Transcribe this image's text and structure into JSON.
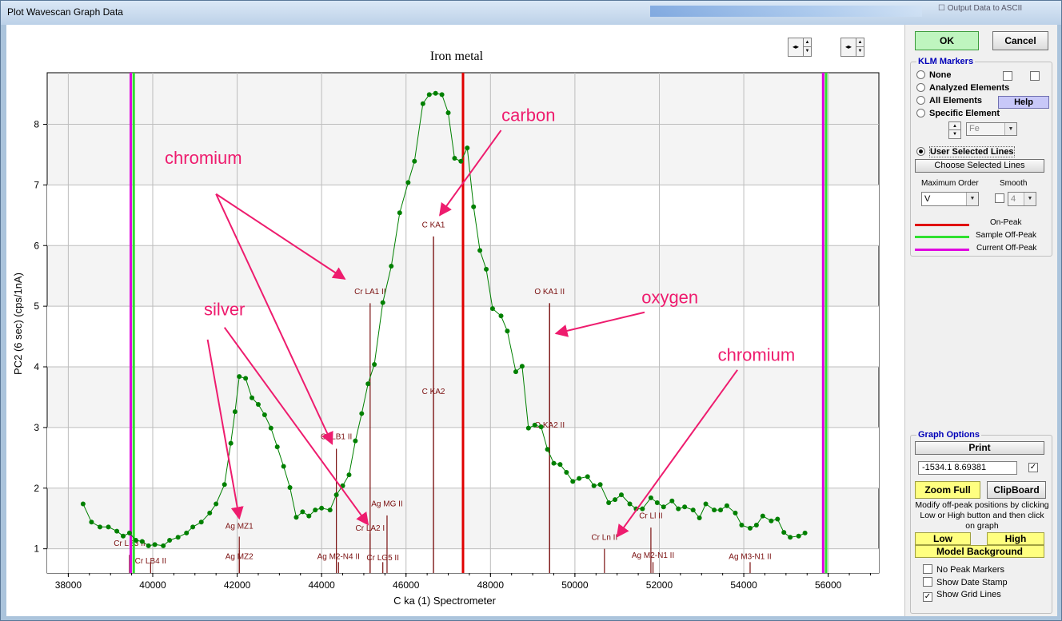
{
  "window": {
    "title": "Plot Wavescan Graph Data",
    "background_hint": "Output Data to ASCII"
  },
  "chart_data": {
    "type": "line",
    "title": "Iron metal",
    "xlabel": "C  ka (1) Spectrometer",
    "ylabel": "PC2 (6 sec) (cps/1nA)",
    "xlim": [
      37500,
      57200
    ],
    "ylim": [
      0.6,
      8.85
    ],
    "x_ticks": [
      38000,
      40000,
      42000,
      44000,
      46000,
      48000,
      50000,
      52000,
      54000,
      56000
    ],
    "y_ticks": [
      1,
      2,
      3,
      4,
      5,
      6,
      7,
      8
    ],
    "grid": true,
    "series": [
      {
        "color": "#008000",
        "points": [
          [
            38350,
            1.74
          ],
          [
            38550,
            1.44
          ],
          [
            38750,
            1.36
          ],
          [
            38950,
            1.36
          ],
          [
            39150,
            1.29
          ],
          [
            39300,
            1.21
          ],
          [
            39450,
            1.26
          ],
          [
            39600,
            1.14
          ],
          [
            39750,
            1.12
          ],
          [
            39900,
            1.05
          ],
          [
            40050,
            1.07
          ],
          [
            40250,
            1.05
          ],
          [
            40400,
            1.14
          ],
          [
            40600,
            1.19
          ],
          [
            40800,
            1.26
          ],
          [
            40950,
            1.36
          ],
          [
            41150,
            1.44
          ],
          [
            41350,
            1.59
          ],
          [
            41500,
            1.74
          ],
          [
            41700,
            2.06
          ],
          [
            41850,
            2.74
          ],
          [
            41950,
            3.26
          ],
          [
            42050,
            3.84
          ],
          [
            42200,
            3.81
          ],
          [
            42350,
            3.49
          ],
          [
            42500,
            3.38
          ],
          [
            42650,
            3.21
          ],
          [
            42800,
            2.99
          ],
          [
            42950,
            2.68
          ],
          [
            43100,
            2.36
          ],
          [
            43250,
            2.01
          ],
          [
            43400,
            1.52
          ],
          [
            43550,
            1.61
          ],
          [
            43700,
            1.54
          ],
          [
            43850,
            1.64
          ],
          [
            44000,
            1.67
          ],
          [
            44200,
            1.64
          ],
          [
            44350,
            1.89
          ],
          [
            44500,
            2.04
          ],
          [
            44650,
            2.22
          ],
          [
            44800,
            2.78
          ],
          [
            44950,
            3.23
          ],
          [
            45100,
            3.72
          ],
          [
            45250,
            4.04
          ],
          [
            45450,
            5.06
          ],
          [
            45650,
            5.66
          ],
          [
            45850,
            6.54
          ],
          [
            46050,
            7.04
          ],
          [
            46200,
            7.39
          ],
          [
            46400,
            8.34
          ],
          [
            46550,
            8.49
          ],
          [
            46700,
            8.51
          ],
          [
            46850,
            8.49
          ],
          [
            47000,
            8.19
          ],
          [
            47150,
            7.44
          ],
          [
            47300,
            7.39
          ],
          [
            47450,
            7.61
          ],
          [
            47600,
            6.64
          ],
          [
            47750,
            5.92
          ],
          [
            47900,
            5.61
          ],
          [
            48050,
            4.96
          ],
          [
            48250,
            4.84
          ],
          [
            48400,
            4.59
          ],
          [
            48600,
            3.92
          ],
          [
            48750,
            4.01
          ],
          [
            48900,
            2.99
          ],
          [
            49050,
            3.04
          ],
          [
            49200,
            3.01
          ],
          [
            49350,
            2.64
          ],
          [
            49500,
            2.41
          ],
          [
            49650,
            2.39
          ],
          [
            49800,
            2.26
          ],
          [
            49950,
            2.11
          ],
          [
            50100,
            2.16
          ],
          [
            50300,
            2.19
          ],
          [
            50450,
            2.04
          ],
          [
            50600,
            2.06
          ],
          [
            50800,
            1.76
          ],
          [
            50950,
            1.81
          ],
          [
            51100,
            1.89
          ],
          [
            51300,
            1.74
          ],
          [
            51450,
            1.66
          ],
          [
            51600,
            1.66
          ],
          [
            51800,
            1.84
          ],
          [
            51950,
            1.76
          ],
          [
            52100,
            1.69
          ],
          [
            52300,
            1.79
          ],
          [
            52450,
            1.66
          ],
          [
            52600,
            1.69
          ],
          [
            52800,
            1.64
          ],
          [
            52950,
            1.51
          ],
          [
            53100,
            1.74
          ],
          [
            53300,
            1.64
          ],
          [
            53450,
            1.64
          ],
          [
            53600,
            1.71
          ],
          [
            53800,
            1.59
          ],
          [
            53950,
            1.39
          ],
          [
            54150,
            1.34
          ],
          [
            54300,
            1.39
          ],
          [
            54450,
            1.54
          ],
          [
            54650,
            1.46
          ],
          [
            54800,
            1.49
          ],
          [
            54950,
            1.27
          ],
          [
            55100,
            1.19
          ],
          [
            55300,
            1.21
          ],
          [
            55450,
            1.26
          ]
        ]
      }
    ],
    "position_lines": [
      {
        "name": "On-Peak",
        "x": 47350,
        "color": "#e00000"
      },
      {
        "name": "Sample Off-Peak",
        "x": 39550,
        "color": "#30e030"
      },
      {
        "name": "Current Off-Peak",
        "x": 39480,
        "color": "#e000e0"
      },
      {
        "name": "Sample Off-Peak",
        "x": 55950,
        "color": "#30e030"
      },
      {
        "name": "Current Off-Peak",
        "x": 55880,
        "color": "#e000e0"
      }
    ],
    "klm_markers": [
      {
        "label": "C KA1",
        "x": 46650,
        "y_top": 6.15,
        "label_y": 6.3
      },
      {
        "label": "C KA2",
        "x": 46650,
        "y_top": 6.15,
        "label_y": 3.55
      },
      {
        "label": "Cr LA1 II",
        "x": 45150,
        "y_top": 5.05,
        "label_y": 5.2
      },
      {
        "label": "O KA1 II",
        "x": 49400,
        "y_top": 5.05,
        "label_y": 5.2
      },
      {
        "label": "O KA2 II",
        "x": 49400,
        "y_top": 5.05,
        "label_y": 3.0
      },
      {
        "label": "Cr LB1 II",
        "x": 44350,
        "y_top": 2.65,
        "label_y": 2.81
      },
      {
        "label": "Ag MG II",
        "x": 45550,
        "y_top": 1.55,
        "label_y": 1.7
      },
      {
        "label": "Cr LA2 I",
        "x": 45150,
        "y_top": 1.25,
        "label_y": 1.3
      },
      {
        "label": "Ag MZ1",
        "x": 42050,
        "y_top": 1.2,
        "label_y": 1.33
      },
      {
        "label": "Ag MZ2",
        "x": 42050,
        "y_top": 0.98,
        "label_y": 0.83
      },
      {
        "label": "Ag M2-N4 II",
        "x": 44400,
        "y_top": 0.78,
        "label_y": 0.83
      },
      {
        "label": "Cr LG5 II",
        "x": 45450,
        "y_top": 0.78,
        "label_y": 0.81
      },
      {
        "label": "Cr LB3 II",
        "x": 39450,
        "y_top": 0.9,
        "label_y": 1.05
      },
      {
        "label": "Cr LB4 II",
        "x": 39950,
        "y_top": 0.78,
        "label_y": 0.76
      },
      {
        "label": "Cr Ln II",
        "x": 50700,
        "y_top": 1.0,
        "label_y": 1.15
      },
      {
        "label": "Cr Ll II",
        "x": 51800,
        "y_top": 1.35,
        "label_y": 1.5
      },
      {
        "label": "Ag M2-N1 II",
        "x": 51850,
        "y_top": 0.78,
        "label_y": 0.85
      },
      {
        "label": "Ag M3-N1 II",
        "x": 54150,
        "y_top": 0.78,
        "label_y": 0.83
      }
    ],
    "annotations": [
      {
        "text": "carbon",
        "x": 48900,
        "y": 8.05,
        "arrow_to": [
          46800,
          6.5
        ]
      },
      {
        "text": "chromium",
        "x": 41200,
        "y": 7.35,
        "arrow_to": [
          44550,
          5.45
        ]
      },
      {
        "text": "oxygen",
        "x": 52250,
        "y": 5.05,
        "arrow_to": [
          49550,
          4.55
        ]
      },
      {
        "text": "silver",
        "x": 41700,
        "y": 4.85,
        "arrow_to": [
          45100,
          1.4
        ]
      },
      {
        "text": "chromium",
        "x": 54300,
        "y": 4.1,
        "arrow_to": [
          51000,
          1.2
        ]
      }
    ],
    "annotation_links": [
      {
        "from": [
          41500,
          6.85
        ],
        "to": [
          44250,
          2.73
        ]
      },
      {
        "from": [
          41300,
          4.45
        ],
        "to": [
          42050,
          1.5
        ]
      }
    ]
  },
  "side": {
    "ok": "OK",
    "cancel": "Cancel",
    "klm": {
      "title": "KLM Markers",
      "options": [
        "None",
        "Analyzed Elements",
        "All Elements",
        "Specific Element",
        "User Selected Lines"
      ],
      "selected": "User Selected Lines",
      "help": "Help",
      "element": "Fe",
      "choose_lines": "Choose Selected Lines",
      "max_order_label": "Maximum Order",
      "max_order": "V",
      "smooth_label": "Smooth",
      "smooth": "4"
    },
    "legend": [
      {
        "label": "On-Peak",
        "color": "#e00000"
      },
      {
        "label": "Sample Off-Peak",
        "color": "#30e030"
      },
      {
        "label": "Current Off-Peak",
        "color": "#e000e0"
      }
    ],
    "graph_options": {
      "title": "Graph Options",
      "print": "Print",
      "cursor_readout": "-1534.1  8.69381",
      "zoom_full": "Zoom Full",
      "clipboard": "ClipBoard",
      "instructions": "Modify off-peak positions by clicking Low or High button and then click on graph",
      "low": "Low",
      "high": "High",
      "model_background": "Model  Background",
      "checks": [
        {
          "label": "No Peak Markers",
          "checked": false
        },
        {
          "label": "Show Date Stamp",
          "checked": false
        },
        {
          "label": "Show Grid Lines",
          "checked": true
        }
      ]
    }
  }
}
